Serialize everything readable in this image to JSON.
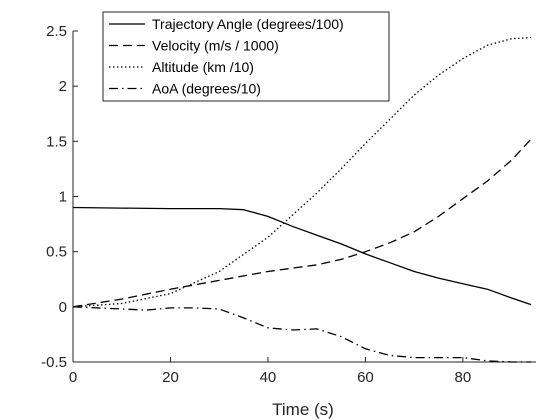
{
  "chart_data": {
    "type": "line",
    "xlabel": "Time (s)",
    "ylabel": "",
    "xlim": [
      0,
      95
    ],
    "ylim": [
      -0.5,
      2.5
    ],
    "x_ticks": [
      0,
      20,
      40,
      60,
      80
    ],
    "y_ticks": [
      -0.5,
      0,
      0.5,
      1,
      1.5,
      2,
      2.5
    ],
    "grid": false,
    "legend_position": "top",
    "series": [
      {
        "name": "Trajectory Angle (degrees/100)",
        "style": "solid",
        "color": "#000000",
        "x": [
          0,
          10,
          20,
          30,
          35,
          40,
          45,
          50,
          55,
          60,
          65,
          70,
          75,
          80,
          85,
          90,
          94
        ],
        "y": [
          0.9,
          0.895,
          0.89,
          0.89,
          0.88,
          0.82,
          0.73,
          0.65,
          0.57,
          0.48,
          0.4,
          0.32,
          0.26,
          0.21,
          0.16,
          0.08,
          0.02
        ]
      },
      {
        "name": "Velocity (m/s / 1000)",
        "style": "dashed",
        "color": "#000000",
        "x": [
          0,
          10,
          20,
          30,
          40,
          50,
          55,
          60,
          65,
          70,
          75,
          80,
          85,
          90,
          94
        ],
        "y": [
          0,
          0.07,
          0.16,
          0.24,
          0.32,
          0.38,
          0.43,
          0.5,
          0.58,
          0.68,
          0.82,
          0.98,
          1.14,
          1.33,
          1.52
        ]
      },
      {
        "name": "Altitude (km /10)",
        "style": "dotted",
        "color": "#000000",
        "x": [
          0,
          10,
          20,
          30,
          40,
          45,
          50,
          55,
          60,
          65,
          70,
          75,
          80,
          85,
          90,
          94
        ],
        "y": [
          0,
          0.03,
          0.12,
          0.32,
          0.63,
          0.83,
          1.03,
          1.25,
          1.48,
          1.7,
          1.92,
          2.1,
          2.25,
          2.37,
          2.43,
          2.44
        ]
      },
      {
        "name": "AoA (degrees/10)",
        "style": "dashdot",
        "color": "#000000",
        "x": [
          0,
          5,
          10,
          15,
          20,
          25,
          30,
          35,
          40,
          45,
          50,
          55,
          60,
          65,
          70,
          75,
          80,
          85,
          90,
          94
        ],
        "y": [
          0,
          -0.01,
          -0.02,
          -0.03,
          -0.01,
          -0.01,
          -0.02,
          -0.1,
          -0.19,
          -0.21,
          -0.2,
          -0.27,
          -0.38,
          -0.44,
          -0.46,
          -0.46,
          -0.46,
          -0.49,
          -0.5,
          -0.5
        ]
      }
    ]
  }
}
